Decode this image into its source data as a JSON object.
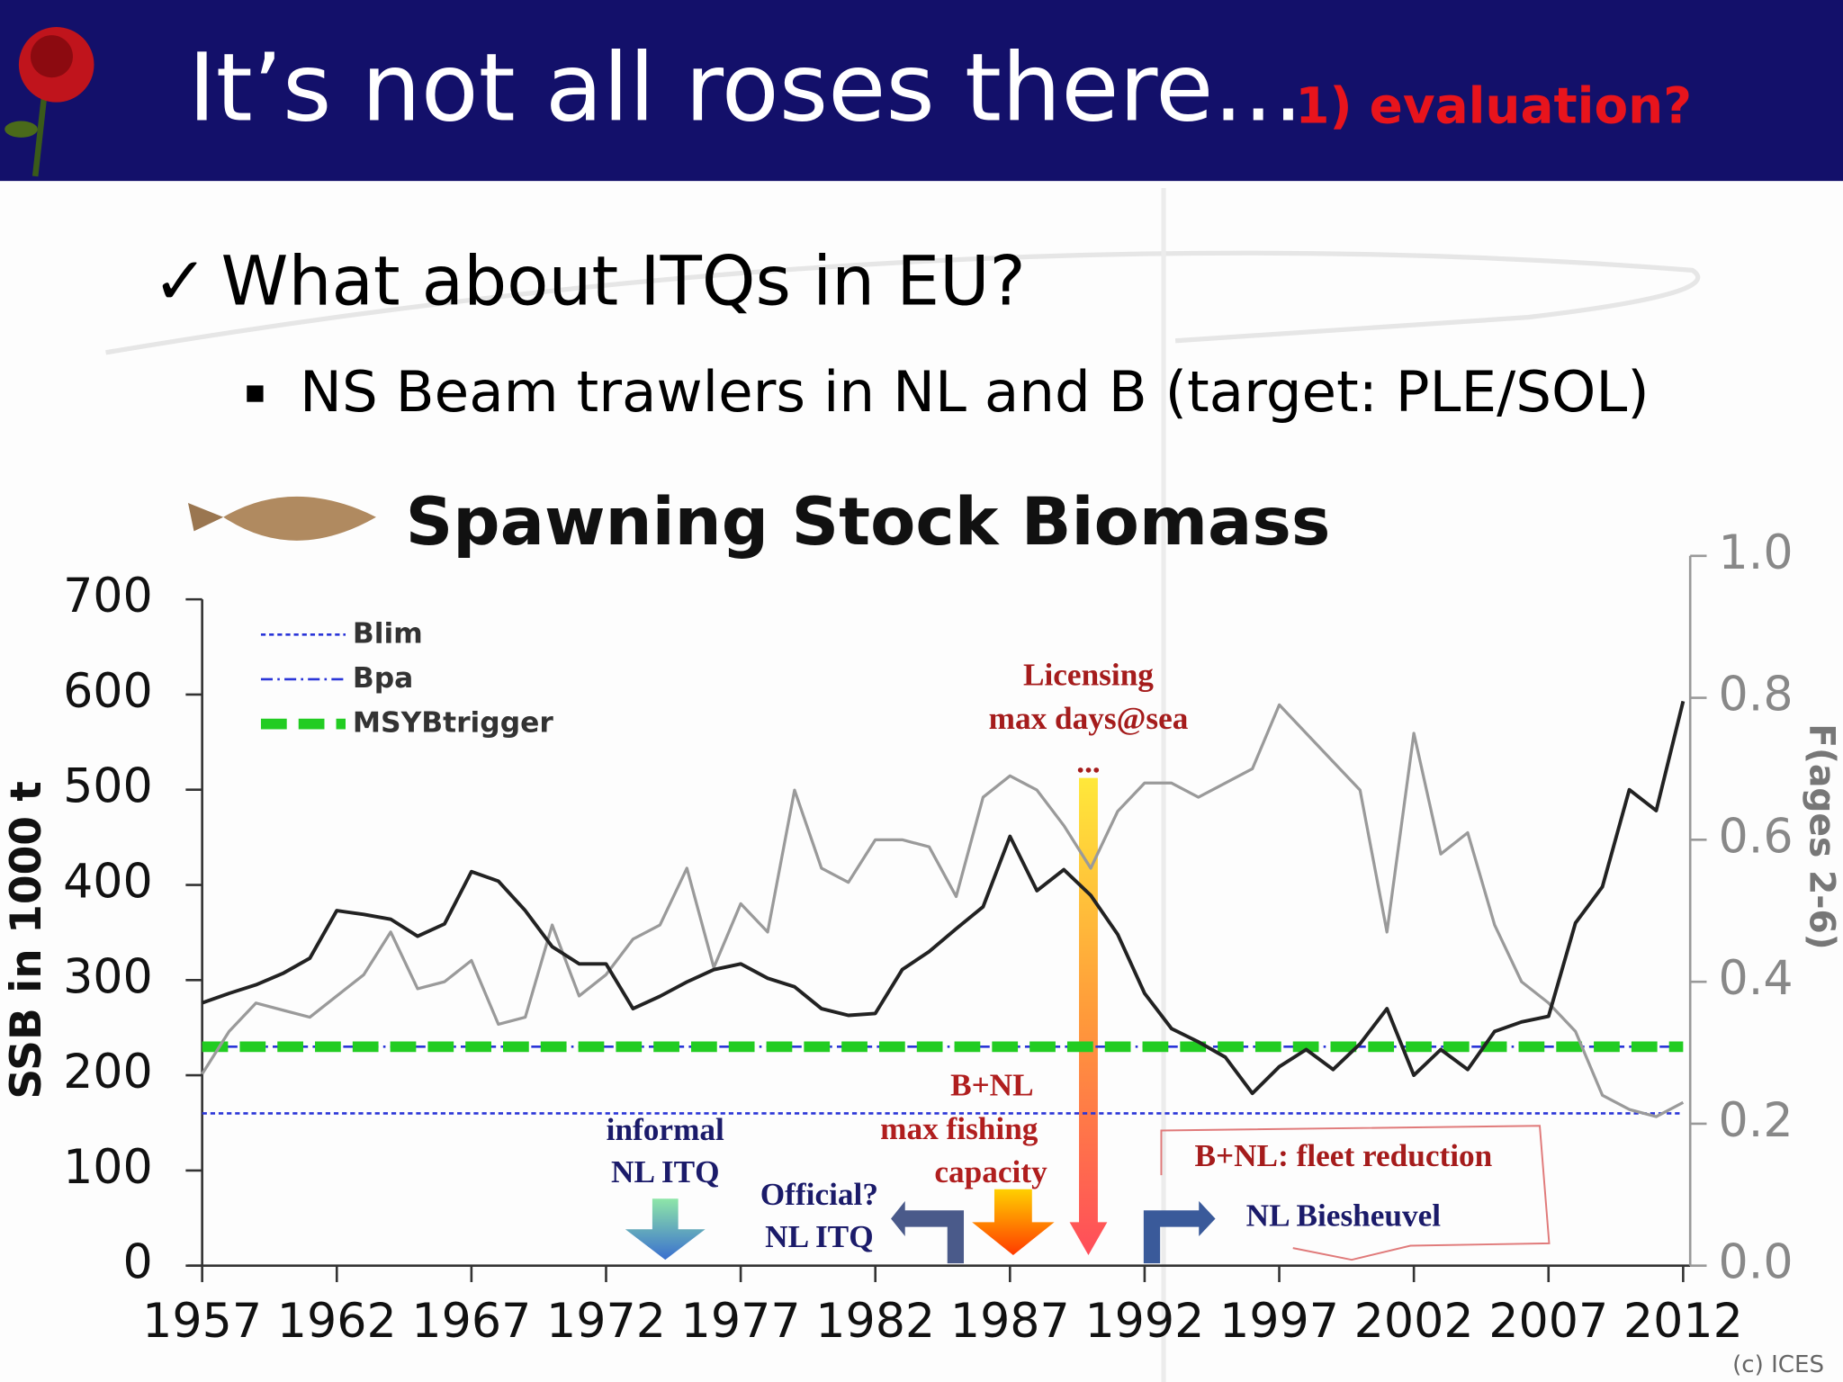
{
  "slide": {
    "title": "It’s not all roses there...",
    "title_note": "1) evaluation?",
    "bullet": "What about ITQs in EU?",
    "sub_bullet": "NS Beam trawlers in NL and B (target: PLE/SOL)",
    "credit": "(c) ICES"
  },
  "chart_data": {
    "type": "line",
    "title": "Spawning Stock Biomass",
    "y_label": "SSB in 1000 t",
    "y2_label": "F(ages 2-6)",
    "x": [
      1957,
      1958,
      1959,
      1960,
      1961,
      1962,
      1963,
      1964,
      1965,
      1966,
      1967,
      1968,
      1969,
      1970,
      1971,
      1972,
      1973,
      1974,
      1975,
      1976,
      1977,
      1978,
      1979,
      1980,
      1981,
      1982,
      1983,
      1984,
      1985,
      1986,
      1987,
      1988,
      1989,
      1990,
      1991,
      1992,
      1993,
      1994,
      1995,
      1996,
      1997,
      1998,
      1999,
      2000,
      2001,
      2002,
      2003,
      2004,
      2005,
      2006,
      2007,
      2008,
      2009,
      2010,
      2011,
      2012
    ],
    "xlim": [
      1957,
      2012
    ],
    "xticks": [
      1957,
      1962,
      1967,
      1972,
      1977,
      1982,
      1987,
      1992,
      1997,
      2002,
      2007,
      2012
    ],
    "ylim": [
      0,
      700
    ],
    "yticks": [
      0,
      100,
      200,
      300,
      400,
      500,
      600,
      700
    ],
    "y2lim": [
      0,
      1
    ],
    "y2ticks": [
      {
        "value": 0,
        "label": "0.0"
      },
      0.2,
      0.4,
      0.6,
      0.8,
      {
        "value": 1,
        "label": "1.0"
      }
    ],
    "series": [
      {
        "color": "#222222",
        "values": [
          276,
          286,
          295,
          307,
          323,
          373,
          369,
          364,
          346,
          359,
          414,
          404,
          373,
          335,
          317,
          317,
          270,
          283,
          298,
          311,
          317,
          302,
          293,
          270,
          263,
          265,
          311,
          330,
          354,
          377,
          451,
          394,
          416,
          389,
          348,
          286,
          249,
          235,
          219,
          181,
          209,
          227,
          206,
          233,
          270,
          200,
          227,
          206,
          246,
          256,
          262,
          360,
          398,
          500,
          478,
          593
        ]
      },
      {
        "color": "#9a9a9a",
        "axis": "y2",
        "values": [
          0.27,
          0.33,
          0.37,
          0.36,
          0.35,
          0.38,
          0.41,
          0.47,
          0.39,
          0.4,
          0.43,
          0.34,
          0.35,
          0.48,
          0.38,
          0.41,
          0.46,
          0.48,
          0.56,
          0.42,
          0.51,
          0.47,
          0.67,
          0.56,
          0.54,
          0.6,
          0.6,
          0.59,
          0.52,
          0.66,
          0.69,
          0.67,
          0.62,
          0.56,
          0.64,
          0.68,
          0.68,
          0.66,
          0.68,
          0.7,
          0.79,
          0.75,
          0.71,
          0.67,
          0.47,
          0.75,
          0.58,
          0.61,
          0.48,
          0.4,
          0.37,
          0.33,
          0.24,
          0.22,
          0.21,
          0.23
        ]
      }
    ],
    "reference_lines": [
      {
        "name": "Blim",
        "value": 160,
        "color": "#2a35d8",
        "dash": "4 3",
        "width": 2
      },
      {
        "name": "Bpa",
        "value": 230,
        "color": "#2a35d8",
        "dash": "10 4 2 4",
        "width": 2
      },
      {
        "name": "MSYBtrigger",
        "value": 230,
        "color": "#22cc22",
        "dash": "22 10",
        "width": 9
      }
    ],
    "annotations": [
      {
        "lines": [
          "Licensing",
          "max days@sea",
          "..."
        ],
        "color": "#a51c1c"
      },
      {
        "lines": [
          "B+NL",
          "max fishing",
          "capacity"
        ],
        "color": "#b01e1e"
      },
      {
        "lines": [
          "informal",
          "NL ITQ"
        ],
        "color": "#1b1b6a"
      },
      {
        "lines": [
          "Official?",
          "NL ITQ"
        ],
        "color": "#1b1b6a"
      },
      {
        "lines": [
          "B+NL: fleet reduction"
        ],
        "color": "#a51c1c"
      },
      {
        "lines": [
          "NL Biesheuvel"
        ],
        "color": "#1b1b6a"
      }
    ]
  }
}
